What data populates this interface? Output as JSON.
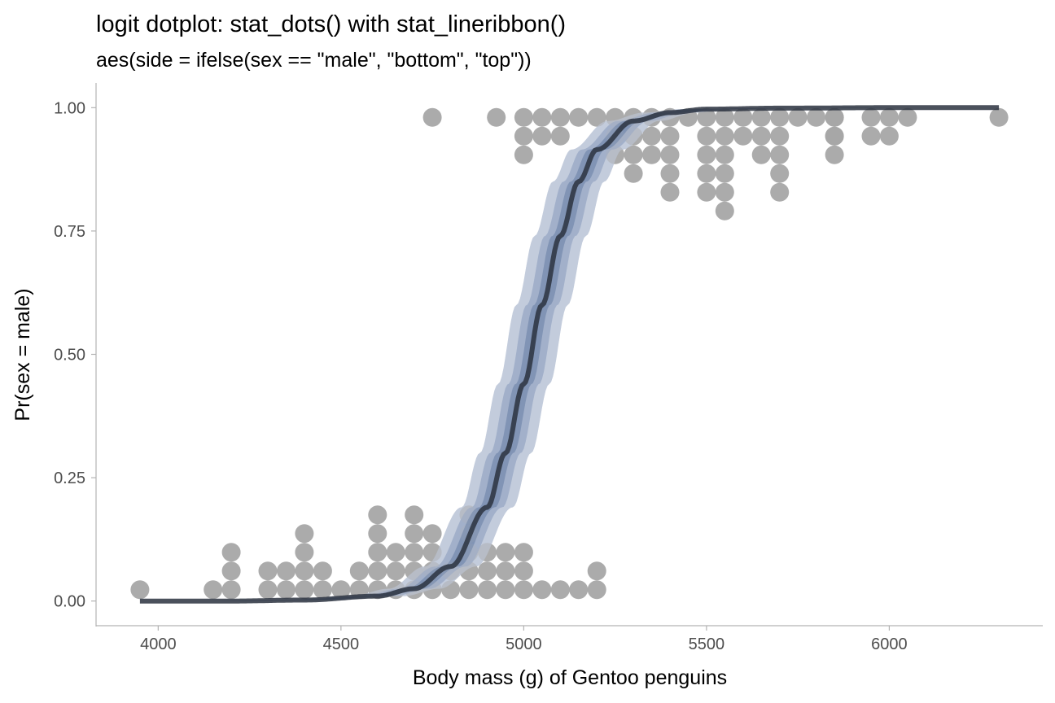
{
  "chart_data": {
    "type": "scatter",
    "title": "logit dotplot: stat_dots() with stat_lineribbon()",
    "subtitle": "aes(side = ifelse(sex == \"male\", \"bottom\", \"top\"))",
    "xlabel": "Body mass (g) of Gentoo penguins",
    "ylabel": "Pr(sex = male)",
    "xlim": [
      3830,
      6420
    ],
    "ylim": [
      -0.05,
      1.05
    ],
    "x_ticks": [
      4000,
      4500,
      5000,
      5500,
      6000
    ],
    "x_tick_labels": [
      "4000",
      "4500",
      "5000",
      "5500",
      "6000"
    ],
    "y_ticks": [
      0,
      0.25,
      0.5,
      0.75,
      1
    ],
    "y_tick_labels": [
      "0.00",
      "0.25",
      "0.50",
      "0.75",
      "1.00"
    ],
    "grid": false,
    "colors": {
      "dots": "#a6a6a6",
      "line": "#2b3240",
      "ribbon_outer": "#c3ccdc",
      "ribbon_middle": "#97a7c4",
      "ribbon_inner": "#6d83a8"
    },
    "dot_columns": {
      "female_bottom_stacks": [
        {
          "x": 3950,
          "count": 1
        },
        {
          "x": 4150,
          "count": 1
        },
        {
          "x": 4200,
          "count": 3
        },
        {
          "x": 4300,
          "count": 2
        },
        {
          "x": 4350,
          "count": 2
        },
        {
          "x": 4400,
          "count": 4
        },
        {
          "x": 4450,
          "count": 2
        },
        {
          "x": 4500,
          "count": 1
        },
        {
          "x": 4550,
          "count": 2
        },
        {
          "x": 4600,
          "count": 5
        },
        {
          "x": 4650,
          "count": 3
        },
        {
          "x": 4700,
          "count": 5
        },
        {
          "x": 4750,
          "count": 4
        },
        {
          "x": 4800,
          "count": 2
        },
        {
          "x": 4850,
          "count": 5
        },
        {
          "x": 4900,
          "count": 3
        },
        {
          "x": 4950,
          "count": 3
        },
        {
          "x": 5000,
          "count": 3
        },
        {
          "x": 5050,
          "count": 1
        },
        {
          "x": 5100,
          "count": 1
        },
        {
          "x": 5150,
          "count": 1
        },
        {
          "x": 5200,
          "count": 2
        }
      ],
      "male_top_stacks": [
        {
          "x": 4750,
          "count": 1
        },
        {
          "x": 4925,
          "count": 1
        },
        {
          "x": 5000,
          "count": 3
        },
        {
          "x": 5050,
          "count": 2
        },
        {
          "x": 5100,
          "count": 2
        },
        {
          "x": 5150,
          "count": 1
        },
        {
          "x": 5200,
          "count": 1
        },
        {
          "x": 5250,
          "count": 3
        },
        {
          "x": 5300,
          "count": 4
        },
        {
          "x": 5350,
          "count": 3
        },
        {
          "x": 5400,
          "count": 5
        },
        {
          "x": 5450,
          "count": 1
        },
        {
          "x": 5500,
          "count": 5
        },
        {
          "x": 5550,
          "count": 6
        },
        {
          "x": 5600,
          "count": 2
        },
        {
          "x": 5650,
          "count": 3
        },
        {
          "x": 5700,
          "count": 5
        },
        {
          "x": 5750,
          "count": 1
        },
        {
          "x": 5800,
          "count": 1
        },
        {
          "x": 5850,
          "count": 2
        },
        {
          "x": 5850,
          "count": 3
        },
        {
          "x": 5950,
          "count": 2
        },
        {
          "x": 6000,
          "count": 2
        },
        {
          "x": 6050,
          "count": 1
        },
        {
          "x": 6300,
          "count": 1
        }
      ]
    },
    "fitted_curve": {
      "x": [
        3950,
        4200,
        4400,
        4600,
        4700,
        4800,
        4900,
        4950,
        5000,
        5050,
        5100,
        5150,
        5200,
        5300,
        5400,
        5500,
        5700,
        6000,
        6300
      ],
      "y": [
        0.0,
        0.0,
        0.002,
        0.01,
        0.025,
        0.07,
        0.19,
        0.3,
        0.44,
        0.6,
        0.74,
        0.85,
        0.915,
        0.973,
        0.99,
        0.997,
        0.999,
        1.0,
        1.0
      ]
    },
    "ribbons": [
      {
        "level": 0.95,
        "lower_shift": 70,
        "upper_shift": -70
      },
      {
        "level": 0.8,
        "lower_shift": 42,
        "upper_shift": -42
      },
      {
        "level": 0.5,
        "lower_shift": 22,
        "upper_shift": -22
      }
    ]
  }
}
